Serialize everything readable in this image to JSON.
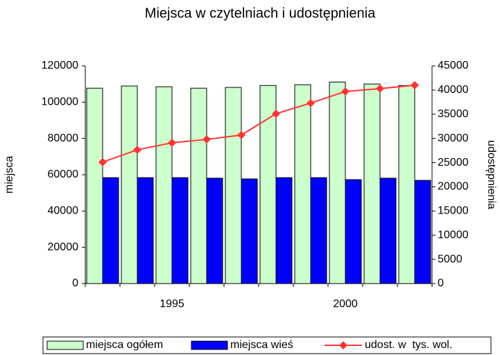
{
  "chart_data": {
    "type": "bar",
    "title": "Miejsca w czytelniach i udostępnienia",
    "ylabel": "miejsca",
    "y2label": "udostępnienia",
    "categories": [
      null,
      null,
      "1995",
      null,
      null,
      null,
      null,
      "2000",
      null,
      null
    ],
    "series": [
      {
        "name": "miejsca ogółem",
        "color": "#ccffcc",
        "type": "bar",
        "values": [
          107700,
          108900,
          108500,
          107700,
          108100,
          109200,
          109600,
          111100,
          110000,
          109200
        ]
      },
      {
        "name": "miejsca wieś",
        "color": "#0000ff",
        "type": "bar",
        "values": [
          58400,
          58400,
          58400,
          58100,
          57700,
          58400,
          58400,
          57300,
          58100,
          56900
        ]
      },
      {
        "name": "udost. w  tys. wol.",
        "color": "#ff3333",
        "type": "line",
        "axis": "y2",
        "values": [
          25100,
          27650,
          29100,
          29800,
          30700,
          35100,
          37300,
          39700,
          40300,
          41000
        ]
      }
    ],
    "ylim": [
      0,
      120000
    ],
    "yticks": [
      0,
      20000,
      40000,
      60000,
      80000,
      100000,
      120000
    ],
    "y2lim": [
      0,
      45000
    ],
    "y2ticks": [
      0,
      5000,
      10000,
      15000,
      20000,
      25000,
      30000,
      35000,
      40000,
      45000
    ],
    "legend": "bottom"
  }
}
